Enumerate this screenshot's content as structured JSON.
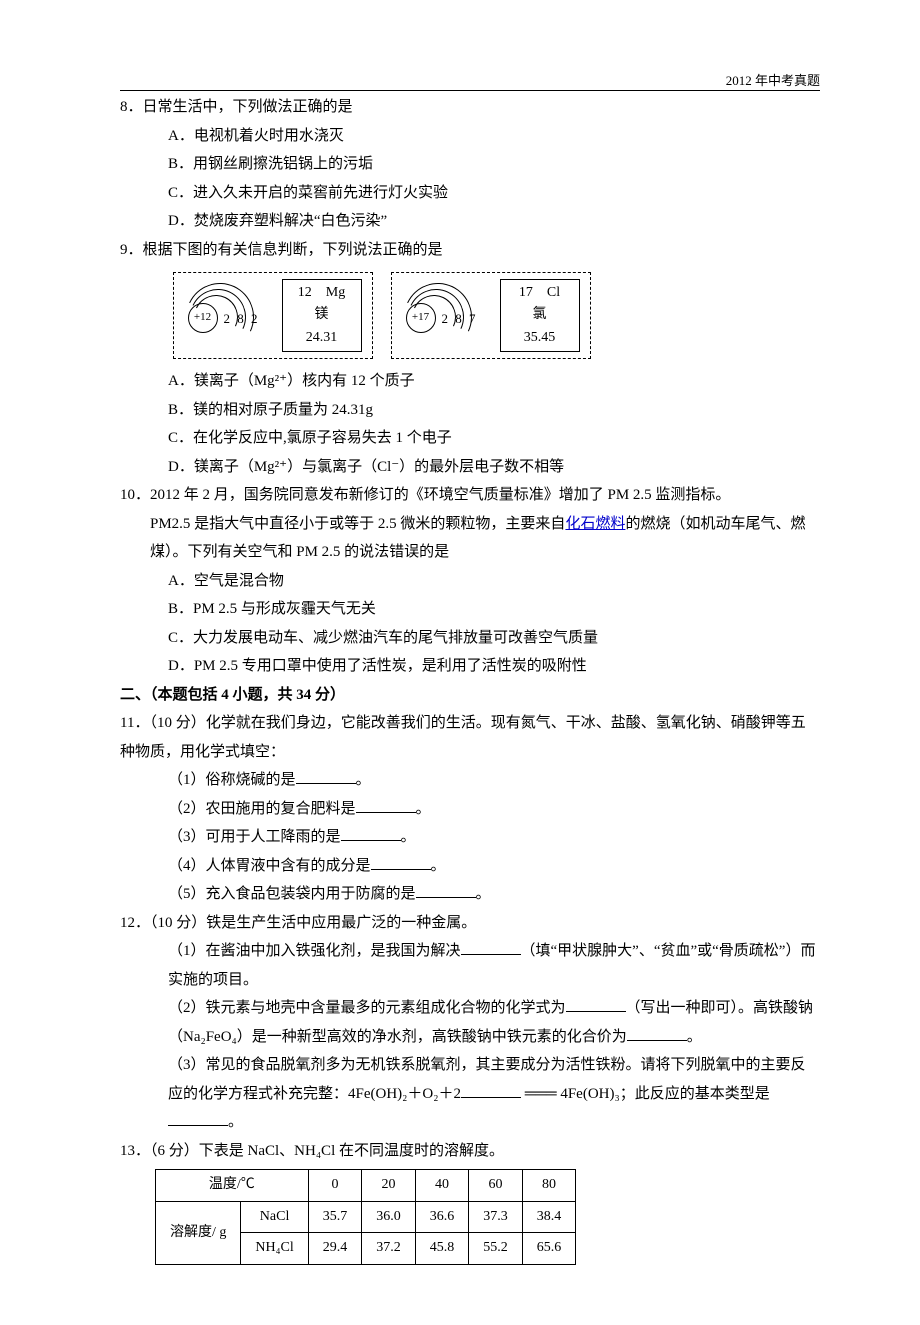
{
  "header": {
    "right": "2012 年中考真题"
  },
  "q8": {
    "stem": "8．日常生活中，下列做法正确的是",
    "A": "A．电视机着火时用水浇灭",
    "B": "B．用钢丝刷擦洗铝锅上的污垢",
    "C": "C．进入久未开启的菜窖前先进行灯火实验",
    "D": "D．焚烧废弃塑料解决“白色污染”"
  },
  "q9": {
    "stem": "9．根据下图的有关信息判断，下列说法正确的是",
    "mg": {
      "nucleus": "+12",
      "shells": "2 8 2",
      "line1": "12　Mg",
      "line2": "镁",
      "line3": "24.31"
    },
    "cl": {
      "nucleus": "+17",
      "shells": "2 8 7",
      "line1": "17　Cl",
      "line2": "氯",
      "line3": "35.45"
    },
    "A": "A．镁离子（Mg²⁺）核内有 12 个质子",
    "B": "B．镁的相对原子质量为 24.31g",
    "C": "C．在化学反应中,氯原子容易失去 1 个电子",
    "D": "D．镁离子（Mg²⁺）与氯离子（Cl⁻）的最外层电子数不相等"
  },
  "q10": {
    "stem_a": "10．2012 年 2 月，国务院同意发布新修订的《环境空气质量标准》增加了 PM 2.5 监测指标。",
    "stem_b": "PM2.5 是指大气中直径小于或等于 2.5 微米的颗粒物，主要来自",
    "link": "化石燃料",
    "stem_c": "的燃烧（如机动车尾气、燃煤）。下列有关空气和 PM 2.5 的说法错误的是",
    "A": "A．空气是混合物",
    "B": "B．PM 2.5 与形成灰霾天气无关",
    "C": "C．大力发展电动车、减少燃油汽车的尾气排放量可改善空气质量",
    "D": "D．PM 2.5 专用口罩中使用了活性炭，是利用了活性炭的吸附性"
  },
  "section2": "二、（本题包括 4 小题，共 34 分）",
  "q11": {
    "stem": "11．（10 分）化学就在我们身边，它能改善我们的生活。现有氮气、干冰、盐酸、氢氧化钠、硝酸钾等五种物质，用化学式填空：",
    "p1_a": "（1）俗称烧碱的是",
    "p1_b": "。",
    "p2_a": "（2）农田施用的复合肥料是",
    "p2_b": "。",
    "p3_a": "（3）可用于人工降雨的是",
    "p3_b": "。",
    "p4_a": "（4）人体胃液中含有的成分是",
    "p4_b": "。",
    "p5_a": "（5）充入食品包装袋内用于防腐的是",
    "p5_b": "。"
  },
  "q12": {
    "stem": "12．（10 分）铁是生产生活中应用最广泛的一种金属。",
    "p1_a": "（1）在酱油中加入铁强化剂，是我国为解决",
    "p1_b": "（填“甲状腺肿大”、“贫血”或“骨质疏松”）而实施的项目。",
    "p2_a": "（2）铁元素与地壳中含量最多的元素组成化合物的化学式为",
    "p2_b": "（写出一种即可）。高铁酸钠（Na₂FeO₄）是一种新型高效的净水剂，高铁酸钠中铁元素的化合价为",
    "p2_c": "。",
    "p3_a": "（3）常见的食品脱氧剂多为无机铁系脱氧剂，其主要成分为活性铁粉。请将下列脱氧中的主要反应的化学方程式补充完整：4Fe(OH)₂＋O₂＋2",
    "p3_b": " ═══ 4Fe(OH)₃；此反应的基本类型是",
    "p3_c": "。"
  },
  "q13": {
    "stem": "13．（6 分）下表是 NaCl、NH₄Cl 在不同温度时的溶解度。",
    "table": {
      "h_temp": "温度/℃",
      "h_sol": "溶解度/ g",
      "r_nacl": "NaCl",
      "r_nh4cl": "NH₄Cl",
      "temps": [
        "0",
        "20",
        "40",
        "60",
        "80"
      ],
      "nacl": [
        "35.7",
        "36.0",
        "36.6",
        "37.3",
        "38.4"
      ],
      "nh4cl": [
        "29.4",
        "37.2",
        "45.8",
        "55.2",
        "65.6"
      ]
    }
  }
}
